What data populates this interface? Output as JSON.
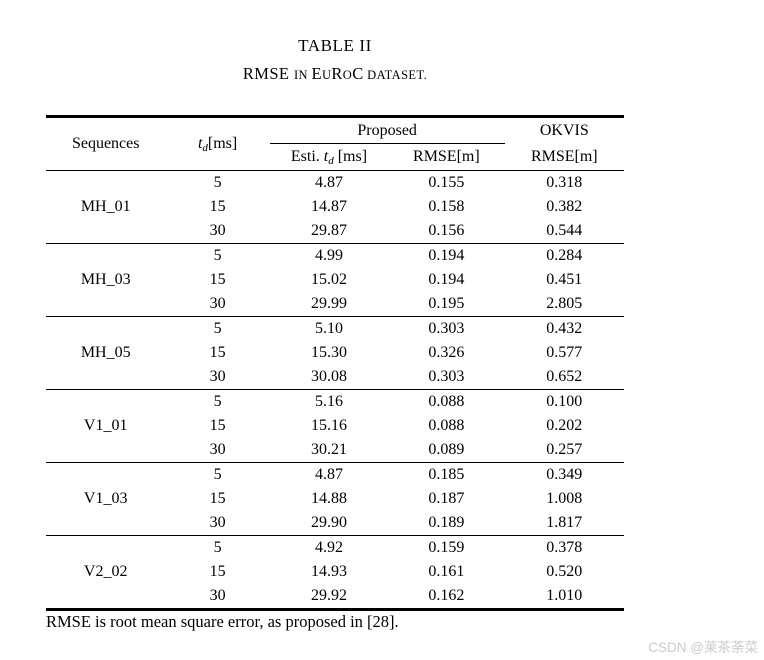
{
  "caption": {
    "number": "TABLE II",
    "subtitle_parts": {
      "p0": "RMSE ",
      "p1": "IN ",
      "p2": "E",
      "p3": "U",
      "p4": "R",
      "p5": "O",
      "p6": "C",
      "p7": " DATASET."
    }
  },
  "table": {
    "header": {
      "sequences": "Sequences",
      "td_label": {
        "t": "t",
        "sub": "d",
        "unit": "[ms]"
      },
      "proposed": "Proposed",
      "esti_label": {
        "prefix": "Esti. ",
        "t": "t",
        "sub": "d",
        "unit": " [ms]"
      },
      "rmse_m": "RMSE[m]",
      "okvis": "OKVIS",
      "okvis_rmse": "RMSE[m]"
    },
    "groups": [
      {
        "sequence": "MH_01",
        "rows": [
          {
            "td": "5",
            "esti": "4.87",
            "rmse": "0.155",
            "okvis": "0.318"
          },
          {
            "td": "15",
            "esti": "14.87",
            "rmse": "0.158",
            "okvis": "0.382"
          },
          {
            "td": "30",
            "esti": "29.87",
            "rmse": "0.156",
            "okvis": "0.544"
          }
        ]
      },
      {
        "sequence": "MH_03",
        "rows": [
          {
            "td": "5",
            "esti": "4.99",
            "rmse": "0.194",
            "okvis": "0.284"
          },
          {
            "td": "15",
            "esti": "15.02",
            "rmse": "0.194",
            "okvis": "0.451"
          },
          {
            "td": "30",
            "esti": "29.99",
            "rmse": "0.195",
            "okvis": "2.805"
          }
        ]
      },
      {
        "sequence": "MH_05",
        "rows": [
          {
            "td": "5",
            "esti": "5.10",
            "rmse": "0.303",
            "okvis": "0.432"
          },
          {
            "td": "15",
            "esti": "15.30",
            "rmse": "0.326",
            "okvis": "0.577"
          },
          {
            "td": "30",
            "esti": "30.08",
            "rmse": "0.303",
            "okvis": "0.652"
          }
        ]
      },
      {
        "sequence": "V1_01",
        "rows": [
          {
            "td": "5",
            "esti": "5.16",
            "rmse": "0.088",
            "okvis": "0.100"
          },
          {
            "td": "15",
            "esti": "15.16",
            "rmse": "0.088",
            "okvis": "0.202"
          },
          {
            "td": "30",
            "esti": "30.21",
            "rmse": "0.089",
            "okvis": "0.257"
          }
        ]
      },
      {
        "sequence": "V1_03",
        "rows": [
          {
            "td": "5",
            "esti": "4.87",
            "rmse": "0.185",
            "okvis": "0.349"
          },
          {
            "td": "15",
            "esti": "14.88",
            "rmse": "0.187",
            "okvis": "1.008"
          },
          {
            "td": "30",
            "esti": "29.90",
            "rmse": "0.189",
            "okvis": "1.817"
          }
        ]
      },
      {
        "sequence": "V2_02",
        "rows": [
          {
            "td": "5",
            "esti": "4.92",
            "rmse": "0.159",
            "okvis": "0.378"
          },
          {
            "td": "15",
            "esti": "14.93",
            "rmse": "0.161",
            "okvis": "0.520"
          },
          {
            "td": "30",
            "esti": "29.92",
            "rmse": "0.162",
            "okvis": "1.010"
          }
        ]
      }
    ]
  },
  "footnote": "RMSE is root mean square error, as proposed in [28].",
  "watermark": "CSDN @莱茶荼菜",
  "colors": {
    "text": "#000000",
    "background": "#ffffff",
    "rule": "#000000",
    "watermark": "#cbcbcb"
  }
}
